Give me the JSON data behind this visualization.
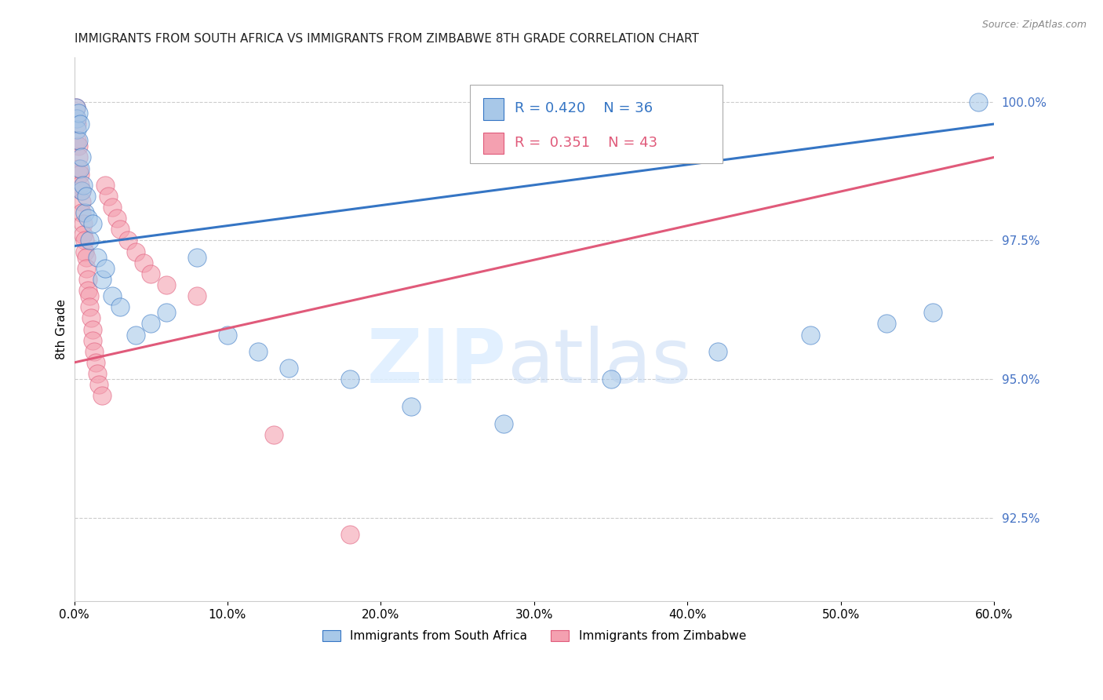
{
  "title": "IMMIGRANTS FROM SOUTH AFRICA VS IMMIGRANTS FROM ZIMBABWE 8TH GRADE CORRELATION CHART",
  "source": "Source: ZipAtlas.com",
  "ylabel": "8th Grade",
  "ylabel_right_ticks": [
    "100.0%",
    "97.5%",
    "95.0%",
    "92.5%"
  ],
  "ylabel_right_vals": [
    1.0,
    0.975,
    0.95,
    0.925
  ],
  "legend_blue_r": "0.420",
  "legend_blue_n": "36",
  "legend_pink_r": "0.351",
  "legend_pink_n": "43",
  "legend_label_blue": "Immigrants from South Africa",
  "legend_label_pink": "Immigrants from Zimbabwe",
  "blue_color": "#a8c8e8",
  "pink_color": "#f4a0b0",
  "blue_line_color": "#3575c4",
  "pink_line_color": "#e05a7a",
  "xlim": [
    0.0,
    0.6
  ],
  "ylim": [
    0.91,
    1.008
  ],
  "xtick_positions": [
    0.0,
    0.1,
    0.2,
    0.3,
    0.4,
    0.5,
    0.6
  ],
  "xtick_labels": [
    "0.0%",
    "10.0%",
    "20.0%",
    "30.0%",
    "40.0%",
    "50.0%",
    "60.0%"
  ],
  "grid_color": "#cccccc",
  "background_color": "#ffffff",
  "sa_x": [
    0.001,
    0.002,
    0.002,
    0.003,
    0.003,
    0.004,
    0.004,
    0.005,
    0.005,
    0.006,
    0.007,
    0.008,
    0.009,
    0.01,
    0.012,
    0.015,
    0.018,
    0.02,
    0.025,
    0.03,
    0.04,
    0.05,
    0.06,
    0.08,
    0.1,
    0.12,
    0.14,
    0.18,
    0.22,
    0.28,
    0.35,
    0.42,
    0.48,
    0.53,
    0.56,
    0.59
  ],
  "sa_y": [
    0.999,
    0.997,
    0.995,
    0.998,
    0.993,
    0.996,
    0.988,
    0.99,
    0.984,
    0.985,
    0.98,
    0.983,
    0.979,
    0.975,
    0.978,
    0.972,
    0.968,
    0.97,
    0.965,
    0.963,
    0.958,
    0.96,
    0.962,
    0.972,
    0.958,
    0.955,
    0.952,
    0.95,
    0.945,
    0.942,
    0.95,
    0.955,
    0.958,
    0.96,
    0.962,
    1.0
  ],
  "zim_x": [
    0.001,
    0.001,
    0.002,
    0.002,
    0.003,
    0.003,
    0.003,
    0.004,
    0.004,
    0.005,
    0.005,
    0.005,
    0.006,
    0.006,
    0.007,
    0.007,
    0.008,
    0.008,
    0.009,
    0.009,
    0.01,
    0.01,
    0.011,
    0.012,
    0.012,
    0.013,
    0.014,
    0.015,
    0.016,
    0.018,
    0.02,
    0.022,
    0.025,
    0.028,
    0.03,
    0.035,
    0.04,
    0.045,
    0.05,
    0.06,
    0.08,
    0.13,
    0.18
  ],
  "zim_y": [
    0.999,
    0.997,
    0.996,
    0.993,
    0.992,
    0.99,
    0.988,
    0.987,
    0.985,
    0.984,
    0.982,
    0.98,
    0.978,
    0.976,
    0.975,
    0.973,
    0.972,
    0.97,
    0.968,
    0.966,
    0.965,
    0.963,
    0.961,
    0.959,
    0.957,
    0.955,
    0.953,
    0.951,
    0.949,
    0.947,
    0.985,
    0.983,
    0.981,
    0.979,
    0.977,
    0.975,
    0.973,
    0.971,
    0.969,
    0.967,
    0.965,
    0.94,
    0.922
  ],
  "blue_line_x0": 0.0,
  "blue_line_x1": 0.6,
  "blue_line_y0": 0.974,
  "blue_line_y1": 0.996,
  "pink_line_x0": 0.0,
  "pink_line_x1": 0.6,
  "pink_line_y0": 0.953,
  "pink_line_y1": 0.99
}
